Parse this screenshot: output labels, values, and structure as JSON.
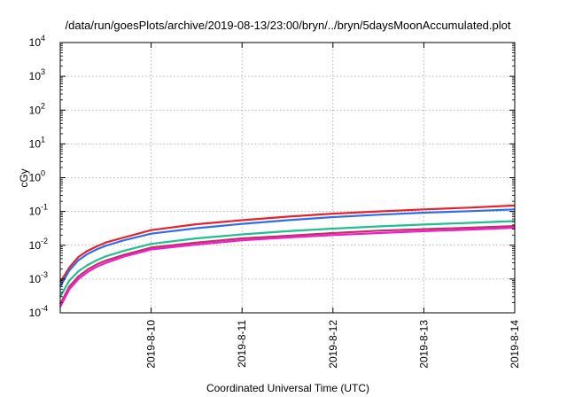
{
  "chart_data": {
    "type": "line",
    "title": "/data/run/goesPlots/archive/2019-08-13/23:00/bryn/../bryn/5daysMoonAccumulated.plot",
    "xlabel": "Coordinated Universal Time (UTC)",
    "ylabel": "cGy",
    "y_scale": "log",
    "ylim": [
      0.0001,
      10000
    ],
    "y_ticks": [
      {
        "base": "10",
        "exp": "-4",
        "value": 0.0001
      },
      {
        "base": "10",
        "exp": "-3",
        "value": 0.001
      },
      {
        "base": "10",
        "exp": "-2",
        "value": 0.01
      },
      {
        "base": "10",
        "exp": "-1",
        "value": 0.1
      },
      {
        "base": "10",
        "exp": "0",
        "value": 1
      },
      {
        "base": "10",
        "exp": "1",
        "value": 10
      },
      {
        "base": "10",
        "exp": "2",
        "value": 100
      },
      {
        "base": "10",
        "exp": "3",
        "value": 1000
      },
      {
        "base": "10",
        "exp": "4",
        "value": 10000
      }
    ],
    "xlim": [
      "2019-08-09",
      "2019-08-14"
    ],
    "x_ticks": [
      "2019-8-10",
      "2019-8-11",
      "2019-8-12",
      "2019-8-13",
      "2019-8-14"
    ],
    "x": [
      "2019-08-09 00:00",
      "2019-08-09 02:24",
      "2019-08-09 04:48",
      "2019-08-09 07:12",
      "2019-08-09 09:36",
      "2019-08-09 12:00",
      "2019-08-09 16:48",
      "2019-08-10 00:00",
      "2019-08-10 12:00",
      "2019-08-11 00:00",
      "2019-08-11 12:00",
      "2019-08-12 00:00",
      "2019-08-12 12:00",
      "2019-08-13 00:00",
      "2019-08-13 12:00",
      "2019-08-14 00:00"
    ],
    "grid": true,
    "series": [
      {
        "color": "#e8202a",
        "values": [
          0.0008,
          0.0022,
          0.0045,
          0.0068,
          0.0092,
          0.012,
          0.017,
          0.028,
          0.042,
          0.055,
          0.07,
          0.086,
          0.1,
          0.115,
          0.13,
          0.15
        ]
      },
      {
        "color": "#2f6ee8",
        "values": [
          0.0006,
          0.0018,
          0.0036,
          0.0055,
          0.0075,
          0.0097,
          0.014,
          0.022,
          0.032,
          0.043,
          0.055,
          0.068,
          0.08,
          0.092,
          0.102,
          0.115
        ]
      },
      {
        "color": "#1fc08e",
        "values": [
          0.0003,
          0.0009,
          0.0017,
          0.0026,
          0.0036,
          0.0047,
          0.0068,
          0.011,
          0.016,
          0.021,
          0.026,
          0.031,
          0.036,
          0.041,
          0.046,
          0.052
        ]
      },
      {
        "color": "#c0306a",
        "values": [
          0.00018,
          0.0006,
          0.0012,
          0.0019,
          0.0027,
          0.0035,
          0.0052,
          0.0085,
          0.012,
          0.016,
          0.019,
          0.023,
          0.027,
          0.03,
          0.033,
          0.037
        ]
      },
      {
        "color": "#f020c8",
        "values": [
          0.00015,
          0.0005,
          0.001,
          0.0016,
          0.0023,
          0.003,
          0.0046,
          0.0075,
          0.0105,
          0.014,
          0.017,
          0.02,
          0.023,
          0.026,
          0.029,
          0.033
        ]
      }
    ]
  }
}
